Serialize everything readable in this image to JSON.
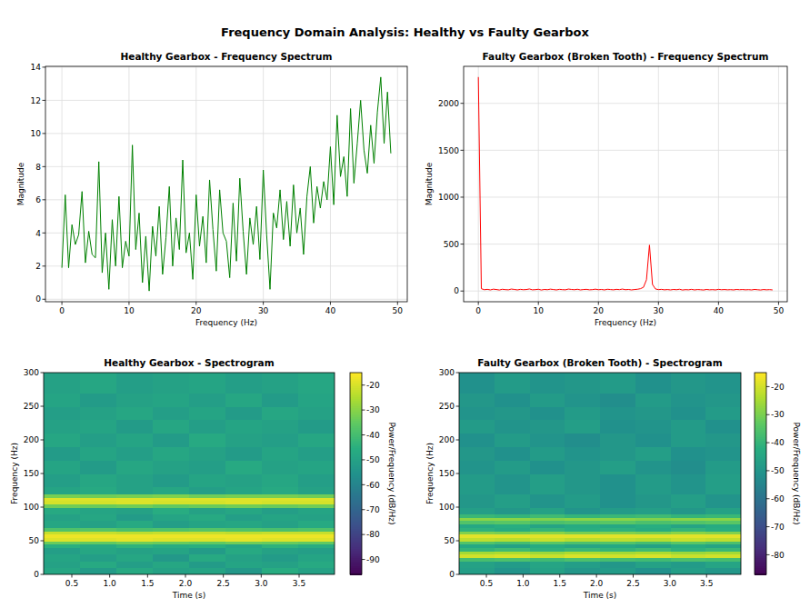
{
  "title": "Frequency Domain Analysis: Healthy vs Faulty Gearbox",
  "chart_data": [
    {
      "type": "line",
      "title": "Healthy Gearbox - Frequency Spectrum",
      "x_label": "Frequency (Hz)",
      "y_label": "Magnitude",
      "color": "#008000",
      "grid": true,
      "xlim": [
        -2.45,
        51.45
      ],
      "xticks": [
        0,
        10,
        20,
        30,
        40,
        50
      ],
      "ylim": [
        -0.15,
        14.05
      ],
      "yticks": [
        0,
        2,
        4,
        6,
        8,
        10,
        12,
        14
      ],
      "x": [
        0,
        0.5,
        1,
        1.5,
        2,
        2.5,
        3,
        3.5,
        4,
        4.5,
        5,
        5.5,
        6,
        6.5,
        7,
        7.5,
        8,
        8.5,
        9,
        9.5,
        10,
        10.5,
        11,
        11.5,
        12,
        12.5,
        13,
        13.5,
        14,
        14.5,
        15,
        15.5,
        16,
        16.5,
        17,
        17.5,
        18,
        18.5,
        19,
        19.5,
        20,
        20.5,
        21,
        21.5,
        22,
        22.5,
        23,
        23.5,
        24,
        24.5,
        25,
        25.5,
        26,
        26.5,
        27,
        27.5,
        28,
        28.5,
        29,
        29.5,
        30,
        30.5,
        31,
        31.5,
        32,
        32.5,
        33,
        33.5,
        34,
        34.5,
        35,
        35.5,
        36,
        36.5,
        37,
        37.5,
        38,
        38.5,
        39,
        39.5,
        40,
        40.5,
        41,
        41.5,
        42,
        42.5,
        43,
        43.5,
        44,
        44.5,
        45,
        45.5,
        46,
        46.5,
        47,
        47.5,
        48,
        48.5,
        49
      ],
      "values": [
        1.9,
        6.3,
        1.9,
        4.5,
        3.3,
        3.9,
        6.5,
        2.2,
        4.1,
        2.7,
        2.5,
        8.3,
        1.6,
        4.0,
        0.6,
        4.8,
        2.0,
        6.2,
        1.9,
        3.5,
        2.6,
        9.3,
        3.0,
        5.2,
        1.0,
        3.8,
        0.5,
        4.4,
        2.6,
        5.6,
        1.5,
        3.7,
        6.8,
        2.0,
        4.9,
        3.0,
        8.4,
        2.8,
        4.0,
        1.2,
        6.3,
        3.2,
        5.0,
        2.2,
        7.2,
        4.2,
        1.7,
        6.6,
        4.0,
        3.5,
        1.3,
        5.8,
        2.3,
        7.3,
        4.1,
        1.5,
        4.9,
        3.3,
        5.6,
        2.4,
        7.8,
        3.9,
        0.6,
        5.2,
        4.3,
        6.6,
        3.6,
        5.9,
        3.2,
        6.9,
        4.0,
        5.5,
        2.7,
        6.2,
        8.0,
        4.6,
        6.8,
        5.5,
        7.1,
        6.0,
        9.2,
        5.7,
        11.1,
        7.4,
        8.6,
        6.2,
        11.5,
        7.0,
        9.4,
        12.0,
        9.0,
        7.6,
        10.5,
        8.2,
        11.3,
        13.4,
        9.4,
        12.5,
        8.8
      ]
    },
    {
      "type": "line",
      "title": "Faulty Gearbox (Broken Tooth) - Frequency Spectrum",
      "x_label": "Frequency (Hz)",
      "y_label": "Magnitude",
      "color": "red",
      "grid": true,
      "xlim": [
        -2.45,
        51.45
      ],
      "xticks": [
        0,
        10,
        20,
        30,
        40,
        50
      ],
      "ylim": [
        -114,
        2394
      ],
      "yticks": [
        0,
        500,
        1000,
        1500,
        2000
      ],
      "x": [
        0,
        0.5,
        1,
        1.5,
        2,
        2.5,
        3,
        3.5,
        4,
        4.5,
        5,
        5.5,
        6,
        6.5,
        7,
        7.5,
        8,
        8.5,
        9,
        9.5,
        10,
        10.5,
        11,
        11.5,
        12,
        12.5,
        13,
        13.5,
        14,
        14.5,
        15,
        15.5,
        16,
        16.5,
        17,
        17.5,
        18,
        18.5,
        19,
        19.5,
        20,
        20.5,
        21,
        21.5,
        22,
        22.5,
        23,
        23.5,
        24,
        24.5,
        25,
        25.5,
        26,
        26.5,
        27,
        27.5,
        28,
        28.5,
        29,
        29.5,
        30,
        30.5,
        31,
        31.5,
        32,
        32.5,
        33,
        33.5,
        34,
        34.5,
        35,
        35.5,
        36,
        36.5,
        37,
        37.5,
        38,
        38.5,
        39,
        39.5,
        40,
        40.5,
        41,
        41.5,
        42,
        42.5,
        43,
        43.5,
        44,
        44.5,
        45,
        45.5,
        46,
        46.5,
        47,
        47.5,
        48,
        48.5,
        49
      ],
      "values": [
        2280,
        25,
        14,
        18,
        12,
        20,
        16,
        11,
        19,
        15,
        13,
        21,
        17,
        12,
        18,
        14,
        16,
        22,
        13,
        15,
        19,
        11,
        17,
        14,
        20,
        16,
        12,
        18,
        15,
        13,
        21,
        17,
        14,
        19,
        12,
        16,
        18,
        13,
        15,
        20,
        14,
        17,
        12,
        19,
        16,
        13,
        18,
        15,
        21,
        14,
        17,
        12,
        16,
        19,
        25,
        40,
        120,
        490,
        70,
        22,
        15,
        18,
        13,
        16,
        12,
        17,
        14,
        19,
        11,
        15,
        13,
        18,
        12,
        16,
        14,
        11,
        17,
        13,
        15,
        12,
        18,
        14,
        16,
        13,
        15,
        12,
        17,
        14,
        16,
        13,
        15,
        12,
        17,
        14,
        11,
        16,
        13,
        15,
        12
      ]
    },
    {
      "type": "heatmap",
      "title": "Healthy Gearbox - Spectrogram",
      "x_label": "Time (s)",
      "y_label": "Frequency (Hz)",
      "xlim": [
        0.128,
        3.968
      ],
      "xticks": [
        0.5,
        {
          "value": 1,
          "label": "1.0"
        },
        1.5,
        {
          "value": 2,
          "label": "2.0"
        },
        2.5,
        {
          "value": 3,
          "label": "3.0"
        },
        3.5
      ],
      "ylim": [
        0,
        300
      ],
      "yticks": [
        0,
        50,
        100,
        150,
        200,
        250,
        300
      ],
      "x_edges": [
        0.128,
        0.608,
        1.088,
        1.568,
        2.048,
        2.528,
        3.008,
        3.488,
        3.968
      ],
      "y_edges": [
        0,
        10,
        20,
        30,
        40,
        45,
        50,
        55,
        60,
        65,
        70,
        80,
        90,
        100,
        105,
        110,
        115,
        120,
        130,
        150,
        170,
        190,
        210,
        230,
        250,
        270,
        300
      ],
      "cells": [
        [
          -48,
          -52,
          -47,
          -50,
          -49,
          -53,
          -46,
          -50
        ],
        [
          -50,
          -47,
          -51,
          -48,
          -52,
          -49,
          -50,
          -47
        ],
        [
          -49,
          -51,
          -48,
          -53,
          -47,
          -50,
          -52,
          -49
        ],
        [
          -51,
          -48,
          -50,
          -49,
          -52,
          -47,
          -50,
          -51
        ],
        [
          -45,
          -47,
          -44,
          -46,
          -45,
          -48,
          -44,
          -46
        ],
        [
          -34,
          -35,
          -33,
          -34,
          -35,
          -33,
          -34,
          -35
        ],
        [
          -19,
          -19,
          -18,
          -19,
          -19,
          -18,
          -19,
          -19
        ],
        [
          -17,
          -17,
          -17,
          -17,
          -17,
          -17,
          -17,
          -17
        ],
        [
          -22,
          -22,
          -23,
          -22,
          -22,
          -23,
          -22,
          -22
        ],
        [
          -38,
          -37,
          -39,
          -38,
          -37,
          -38,
          -39,
          -38
        ],
        [
          -48,
          -50,
          -47,
          -51,
          -49,
          -48,
          -50,
          -47
        ],
        [
          -50,
          -48,
          -52,
          -49,
          -47,
          -51,
          -49,
          -50
        ],
        [
          -47,
          -49,
          -50,
          -46,
          -50,
          -48,
          -51,
          -49
        ],
        [
          -33,
          -34,
          -33,
          -35,
          -34,
          -33,
          -34,
          -33
        ],
        [
          -20,
          -20,
          -19,
          -20,
          -20,
          -19,
          -20,
          -20
        ],
        [
          -19,
          -19,
          -19,
          -19,
          -19,
          -19,
          -19,
          -19
        ],
        [
          -32,
          -33,
          -32,
          -31,
          -33,
          -32,
          -32,
          -33
        ],
        [
          -49,
          -47,
          -50,
          -48,
          -51,
          -49,
          -47,
          -50
        ],
        [
          -51,
          -48,
          -50,
          -52,
          -49,
          -50,
          -48,
          -51
        ],
        [
          -49,
          -52,
          -48,
          -50,
          -51,
          -47,
          -50,
          -49
        ],
        [
          -52,
          -49,
          -51,
          -48,
          -50,
          -52,
          -49,
          -51
        ],
        [
          -48,
          -51,
          -49,
          -52,
          -47,
          -50,
          -51,
          -48
        ],
        [
          -50,
          -49,
          -52,
          -48,
          -51,
          -49,
          -50,
          -52
        ],
        [
          -51,
          -50,
          -48,
          -51,
          -49,
          -52,
          -48,
          -50
        ],
        [
          -49,
          -52,
          -50,
          -49,
          -51,
          -48,
          -52,
          -49
        ],
        [
          -50,
          -48,
          -51,
          -50,
          -49,
          -51,
          -50,
          -48
        ]
      ],
      "colorbar": {
        "label": "Power/Frequency (dB/Hz)",
        "range": [
          -96,
          -15
        ],
        "ticks": [
          -90,
          -80,
          -70,
          -60,
          -50,
          -40,
          -30,
          -20
        ]
      }
    },
    {
      "type": "heatmap",
      "title": "Faulty Gearbox (Broken Tooth) - Spectrogram",
      "x_label": "Time (s)",
      "y_label": "Frequency (Hz)",
      "xlim": [
        0.128,
        3.968
      ],
      "xticks": [
        0.5,
        {
          "value": 1,
          "label": "1.0"
        },
        1.5,
        {
          "value": 2,
          "label": "2.0"
        },
        2.5,
        {
          "value": 3,
          "label": "3.0"
        },
        3.5
      ],
      "ylim": [
        0,
        300
      ],
      "yticks": [
        0,
        50,
        100,
        150,
        200,
        250,
        300
      ],
      "x_edges": [
        0.128,
        0.608,
        1.088,
        1.568,
        2.048,
        2.528,
        3.008,
        3.488,
        3.968
      ],
      "y_edges": [
        0,
        10,
        20,
        25,
        30,
        35,
        40,
        45,
        50,
        55,
        60,
        65,
        70,
        75,
        80,
        85,
        90,
        100,
        120,
        150,
        170,
        190,
        210,
        230,
        250,
        270,
        300
      ],
      "cells": [
        [
          -47,
          -50,
          -46,
          -49,
          -48,
          -51,
          -47,
          -49
        ],
        [
          -46,
          -48,
          -45,
          -47,
          -49,
          -46,
          -48,
          -45
        ],
        [
          -37,
          -36,
          -38,
          -36,
          -37,
          -38,
          -36,
          -37
        ],
        [
          -20,
          -19,
          -21,
          -19,
          -20,
          -19,
          -21,
          -20
        ],
        [
          -25,
          -24,
          -26,
          -24,
          -25,
          -24,
          -26,
          -25
        ],
        [
          -40,
          -38,
          -41,
          -39,
          -40,
          -38,
          -41,
          -39
        ],
        [
          -44,
          -46,
          -43,
          -45,
          -44,
          -46,
          -43,
          -45
        ],
        [
          -35,
          -37,
          -34,
          -36,
          -35,
          -37,
          -34,
          -36
        ],
        [
          -22,
          -23,
          -21,
          -23,
          -22,
          -23,
          -21,
          -22
        ],
        [
          -18,
          -18,
          -18,
          -18,
          -18,
          -18,
          -18,
          -18
        ],
        [
          -29,
          -30,
          -28,
          -30,
          -29,
          -30,
          -28,
          -29
        ],
        [
          -41,
          -43,
          -40,
          -42,
          -41,
          -43,
          -40,
          -42
        ],
        [
          -44,
          -42,
          -45,
          -43,
          -44,
          -42,
          -45,
          -43
        ],
        [
          -35,
          -34,
          -36,
          -35,
          -34,
          -36,
          -35,
          -34
        ],
        [
          -28,
          -28,
          -29,
          -28,
          -28,
          -29,
          -28,
          -28
        ],
        [
          -39,
          -40,
          -38,
          -40,
          -39,
          -38,
          -40,
          -39
        ],
        [
          -47,
          -49,
          -46,
          -50,
          -48,
          -47,
          -49,
          -46
        ],
        [
          -49,
          -47,
          -50,
          -48,
          -51,
          -49,
          -47,
          -50
        ],
        [
          -48,
          -50,
          -47,
          -49,
          -51,
          -48,
          -50,
          -47
        ],
        [
          -50,
          -48,
          -51,
          -49,
          -47,
          -50,
          -52,
          -48
        ],
        [
          -49,
          -51,
          -48,
          -50,
          -49,
          -47,
          -51,
          -50
        ],
        [
          -51,
          -48,
          -50,
          -52,
          -49,
          -51,
          -48,
          -49
        ],
        [
          -48,
          -50,
          -49,
          -47,
          -51,
          -50,
          -48,
          -51
        ],
        [
          -50,
          -49,
          -51,
          -48,
          -50,
          -49,
          -51,
          -48
        ],
        [
          -49,
          -51,
          -48,
          -50,
          -52,
          -48,
          -50,
          -49
        ],
        [
          -51,
          -48,
          -50,
          -49,
          -48,
          -51,
          -49,
          -50
        ]
      ],
      "colorbar": {
        "label": "Power/Frequency (dB/Hz)",
        "range": [
          -87,
          -15
        ],
        "ticks": [
          -80,
          -70,
          -60,
          -50,
          -40,
          -30,
          -20
        ]
      }
    }
  ]
}
